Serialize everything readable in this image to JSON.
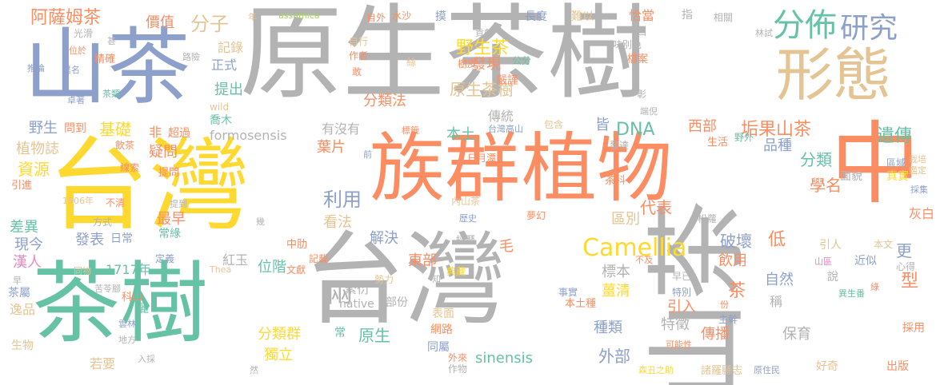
{
  "palette": {
    "gray": "#b3b3b3",
    "orange": "#fc8d62",
    "blue": "#8da0cb",
    "yellow": "#ffd92f",
    "green": "#66c2a5",
    "tan": "#e5c494",
    "lime": "#a6d854",
    "pink": "#e78ac3"
  },
  "words": [
    {
      "text": "原生茶樹",
      "color": "gray"
    },
    {
      "text": "族群",
      "color": "orange"
    },
    {
      "text": "植物",
      "color": "orange"
    },
    {
      "text": "中",
      "color": "orange"
    },
    {
      "text": "台灣",
      "color": "yellow"
    },
    {
      "text": "台灣",
      "color": "gray"
    },
    {
      "text": "山茶",
      "color": "gray"
    },
    {
      "text": "山茶",
      "color": "blue"
    },
    {
      "text": "茶樹",
      "color": "green"
    },
    {
      "text": "形態",
      "color": "tan"
    },
    {
      "text": "分佈",
      "color": "green"
    },
    {
      "text": "研究",
      "color": "blue"
    },
    {
      "text": "Camellia",
      "color": "yellow"
    },
    {
      "text": "兩",
      "color": "gray"
    },
    {
      "text": "阿薩姆茶",
      "color": "orange"
    },
    {
      "text": "分子",
      "color": "tan"
    },
    {
      "text": "價值",
      "color": "orange"
    },
    {
      "text": "記錄",
      "color": "tan"
    },
    {
      "text": "正式",
      "color": "blue"
    },
    {
      "text": "提出",
      "color": "green"
    },
    {
      "text": "野生茶",
      "color": "yellow"
    },
    {
      "text": "發現",
      "color": "orange"
    },
    {
      "text": "原生茶樹",
      "color": "tan"
    },
    {
      "text": "分類法",
      "color": "orange"
    },
    {
      "text": "傳統",
      "color": "gray"
    },
    {
      "text": "本土",
      "color": "green"
    },
    {
      "text": "DNA",
      "color": "green"
    },
    {
      "text": "皆",
      "color": "blue"
    },
    {
      "text": "西部",
      "color": "orange"
    },
    {
      "text": "垢果山茶",
      "color": "orange"
    },
    {
      "text": "遺傳",
      "color": "green"
    },
    {
      "text": "品種",
      "color": "blue"
    },
    {
      "text": "分類",
      "color": "green"
    },
    {
      "text": "學名",
      "color": "orange"
    },
    {
      "text": "代表",
      "color": "orange"
    },
    {
      "text": "區別",
      "color": "tan"
    },
    {
      "text": "破壞",
      "color": "blue"
    },
    {
      "text": "低",
      "color": "orange"
    },
    {
      "text": "更",
      "color": "blue"
    },
    {
      "text": "引人",
      "color": "tan"
    },
    {
      "text": "基礎",
      "color": "yellow"
    },
    {
      "text": "非",
      "color": "orange"
    },
    {
      "text": "野生",
      "color": "blue"
    },
    {
      "text": "問到",
      "color": "orange"
    },
    {
      "text": "超過",
      "color": "orange"
    },
    {
      "text": "喬木",
      "color": "green"
    },
    {
      "text": "formosensis",
      "color": "gray"
    },
    {
      "text": "有沒有",
      "color": "gray"
    },
    {
      "text": "植物誌",
      "color": "tan"
    },
    {
      "text": "疑問",
      "color": "orange"
    },
    {
      "text": "資源",
      "color": "yellow"
    },
    {
      "text": "葉片",
      "color": "orange"
    },
    {
      "text": "利用",
      "color": "blue"
    },
    {
      "text": "差異",
      "color": "green"
    },
    {
      "text": "最早",
      "color": "orange"
    },
    {
      "text": "常綠",
      "color": "green"
    },
    {
      "text": "發表",
      "color": "blue"
    },
    {
      "text": "日常",
      "color": "blue"
    },
    {
      "text": "看法",
      "color": "tan"
    },
    {
      "text": "解決",
      "color": "blue"
    },
    {
      "text": "毛",
      "color": "orange"
    },
    {
      "text": "東部",
      "color": "orange"
    },
    {
      "text": "位階",
      "color": "green"
    },
    {
      "text": "紅玉",
      "color": "gray"
    },
    {
      "text": "漢人",
      "color": "pink"
    },
    {
      "text": "1717年",
      "color": "green"
    },
    {
      "text": "現今",
      "color": "blue"
    },
    {
      "text": "標本",
      "color": "gray"
    },
    {
      "text": "飲用",
      "color": "orange"
    },
    {
      "text": "自然",
      "color": "blue"
    },
    {
      "text": "薑清",
      "color": "yellow"
    },
    {
      "text": "茶",
      "color": "orange"
    },
    {
      "text": "型",
      "color": "orange"
    },
    {
      "text": "引入",
      "color": "orange"
    },
    {
      "text": "稱",
      "color": "gray"
    },
    {
      "text": "特徵",
      "color": "gray"
    },
    {
      "text": "傳播",
      "color": "orange"
    },
    {
      "text": "保育",
      "color": "gray"
    },
    {
      "text": "種類",
      "color": "blue"
    },
    {
      "text": "外部",
      "color": "blue"
    },
    {
      "text": "分類群",
      "color": "yellow"
    },
    {
      "text": "原生",
      "color": "green"
    },
    {
      "text": "獨立",
      "color": "yellow"
    },
    {
      "text": "sinensis",
      "color": "green"
    },
    {
      "text": "native",
      "color": "gray"
    },
    {
      "text": "部份",
      "color": "gray"
    },
    {
      "text": "繁衍",
      "color": "gray"
    },
    {
      "text": "表面",
      "color": "tan"
    },
    {
      "text": "網路",
      "color": "orange"
    },
    {
      "text": "同屬",
      "color": "blue"
    },
    {
      "text": "外來",
      "color": "orange"
    },
    {
      "text": "作物",
      "color": "gray"
    },
    {
      "text": "茶屬",
      "color": "blue"
    },
    {
      "text": "逸品",
      "color": "tan"
    },
    {
      "text": "生物",
      "color": "tan"
    },
    {
      "text": "若要",
      "color": "tan"
    },
    {
      "text": "出版",
      "color": "orange"
    },
    {
      "text": "好奇",
      "color": "tan"
    },
    {
      "text": "採用",
      "color": "orange"
    },
    {
      "text": "灰白",
      "color": "orange"
    },
    {
      "text": "心得",
      "color": "gray"
    },
    {
      "text": "近似",
      "color": "blue"
    },
    {
      "text": "本文",
      "color": "tan"
    },
    {
      "text": "說",
      "color": "gray"
    },
    {
      "text": "早已",
      "color": "gray"
    },
    {
      "text": "特別",
      "color": "blue"
    },
    {
      "text": "主幹",
      "color": "blue"
    },
    {
      "text": "可能性",
      "color": "orange"
    },
    {
      "text": "諸羅縣志",
      "color": "tan"
    },
    {
      "text": "森丑之助",
      "color": "yellow"
    },
    {
      "text": "原住民",
      "color": "blue"
    },
    {
      "text": "面貌",
      "color": "gray"
    },
    {
      "text": "區域",
      "color": "blue"
    },
    {
      "text": "真實",
      "color": "yellow"
    },
    {
      "text": "栽培",
      "color": "tan"
    },
    {
      "text": "鑑定",
      "color": "tan"
    },
    {
      "text": "採集",
      "color": "blue"
    },
    {
      "text": "長度",
      "color": "blue"
    },
    {
      "text": "難以",
      "color": "tan"
    },
    {
      "text": "恰當",
      "color": "orange"
    },
    {
      "text": "指",
      "color": "gray"
    },
    {
      "text": "相關",
      "color": "gray"
    },
    {
      "text": "林試",
      "color": "gray"
    },
    {
      "text": "凸",
      "color": "gray"
    },
    {
      "text": "味別色",
      "color": "gray"
    },
    {
      "text": "檔案",
      "color": "orange"
    },
    {
      "text": "彰",
      "color": "gray"
    },
    {
      "text": "端倪",
      "color": "gray"
    },
    {
      "text": "野外",
      "color": "green"
    },
    {
      "text": "生活",
      "color": "orange"
    },
    {
      "text": "發達",
      "color": "gray"
    },
    {
      "text": "茶科",
      "color": "orange"
    },
    {
      "text": "日月潭",
      "color": "orange"
    },
    {
      "text": "內山茶",
      "color": "tan"
    },
    {
      "text": "歷史",
      "color": "blue"
    },
    {
      "text": "夢幻",
      "color": "orange"
    },
    {
      "text": "經歷",
      "color": "gray"
    },
    {
      "text": "松蘿",
      "color": "gray"
    },
    {
      "text": "不及",
      "color": "orange"
    },
    {
      "text": "山區",
      "color": "pink"
    },
    {
      "text": "異生番",
      "color": "green"
    },
    {
      "text": "事實",
      "color": "blue"
    },
    {
      "text": "本土種",
      "color": "orange"
    },
    {
      "text": "份",
      "color": "orange"
    },
    {
      "text": "包含",
      "color": "tan"
    },
    {
      "text": "台灣高山",
      "color": "blue"
    },
    {
      "text": "標籤",
      "color": "orange"
    },
    {
      "text": "前",
      "color": "blue"
    },
    {
      "text": "嚴謹",
      "color": "orange"
    },
    {
      "text": "公分",
      "color": "green"
    },
    {
      "text": "樹皮",
      "color": "orange"
    },
    {
      "text": "摸",
      "color": "blue"
    },
    {
      "text": "貢獻",
      "color": "gray"
    },
    {
      "text": "絲",
      "color": "tan"
    },
    {
      "text": "自行",
      "color": "tan"
    },
    {
      "text": "作者",
      "color": "orange"
    },
    {
      "text": "敢",
      "color": "orange"
    },
    {
      "text": "自外",
      "color": "orange"
    },
    {
      "text": "水沙",
      "color": "orange"
    },
    {
      "text": "assamica",
      "color": "lime"
    },
    {
      "text": "年",
      "color": "tan"
    },
    {
      "text": "路險",
      "color": "gray"
    },
    {
      "text": "wild",
      "color": "tan"
    },
    {
      "text": "甚",
      "color": "gray"
    },
    {
      "text": "光滑",
      "color": "gray"
    },
    {
      "text": "精確",
      "color": "orange"
    },
    {
      "text": "位於",
      "color": "orange"
    },
    {
      "text": "異名",
      "color": "blue"
    },
    {
      "text": "推論",
      "color": "blue"
    },
    {
      "text": "卓著",
      "color": "blue"
    },
    {
      "text": "茶類",
      "color": "green"
    },
    {
      "text": "飲茶",
      "color": "orange"
    },
    {
      "text": "線索",
      "color": "orange"
    },
    {
      "text": "提問",
      "color": "orange"
    },
    {
      "text": "引進",
      "color": "orange"
    },
    {
      "text": "1906年",
      "color": "tan"
    },
    {
      "text": "不清",
      "color": "orange"
    },
    {
      "text": "提到",
      "color": "gray"
    },
    {
      "text": "方式",
      "color": "gray"
    },
    {
      "text": "定義",
      "color": "blue"
    },
    {
      "text": "同物",
      "color": "tan"
    },
    {
      "text": "苦苓腳",
      "color": "gray"
    },
    {
      "text": "科山",
      "color": "orange"
    },
    {
      "text": "麗",
      "color": "green"
    },
    {
      "text": "雲林",
      "color": "blue"
    },
    {
      "text": "地方",
      "color": "gray"
    },
    {
      "text": "入採",
      "color": "gray"
    },
    {
      "text": "然",
      "color": "gray"
    },
    {
      "text": "早",
      "color": "gray"
    },
    {
      "text": "中肋",
      "color": "orange"
    },
    {
      "text": "記載",
      "color": "orange"
    },
    {
      "text": "勢力",
      "color": "tan"
    },
    {
      "text": "文獻",
      "color": "orange"
    },
    {
      "text": "Thea",
      "color": "tan"
    },
    {
      "text": "知",
      "color": "gray"
    },
    {
      "text": "典藏",
      "color": "yellow"
    },
    {
      "text": "幾",
      "color": "gray"
    },
    {
      "text": "綠",
      "color": "orange"
    },
    {
      "text": "常",
      "color": "green"
    }
  ]
}
